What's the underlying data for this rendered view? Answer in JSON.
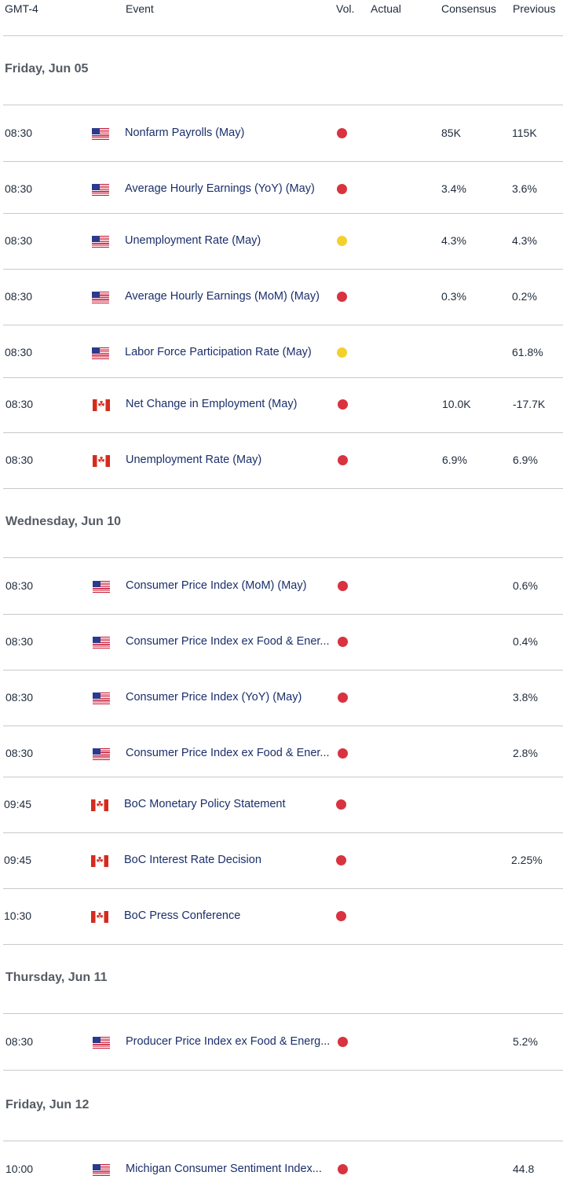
{
  "header": {
    "timezone": "GMT-4",
    "event": "Event",
    "vol": "Vol.",
    "actual": "Actual",
    "consensus": "Consensus",
    "previous": "Previous"
  },
  "colors": {
    "high": "#d8333f",
    "medium": "#f2d12e"
  },
  "sections": [
    {
      "date": "Friday, Jun 05",
      "rows": [
        {
          "time": "08:30",
          "flag": "us-flag-icon",
          "event": "Nonfarm Payrolls (May)",
          "vol": "high",
          "actual": "",
          "consensus": "85K",
          "previous": "115K"
        },
        {
          "time": "08:30",
          "flag": "us-flag-icon",
          "event": "Average Hourly Earnings (YoY) (May)",
          "vol": "high",
          "actual": "",
          "consensus": "3.4%",
          "previous": "3.6%"
        },
        {
          "time": "08:30",
          "flag": "us-flag-icon",
          "event": "Unemployment Rate (May)",
          "vol": "medium",
          "actual": "",
          "consensus": "4.3%",
          "previous": "4.3%"
        },
        {
          "time": "08:30",
          "flag": "us-flag-icon",
          "event": "Average Hourly Earnings (MoM) (May)",
          "vol": "high",
          "actual": "",
          "consensus": "0.3%",
          "previous": "0.2%"
        },
        {
          "time": "08:30",
          "flag": "us-flag-icon",
          "event": "Labor Force Participation Rate (May)",
          "vol": "medium",
          "actual": "",
          "consensus": "",
          "previous": "61.8%"
        },
        {
          "time": "08:30",
          "flag": "ca-flag-icon",
          "event": "Net Change in Employment (May)",
          "vol": "high",
          "actual": "",
          "consensus": "10.0K",
          "previous": "-17.7K"
        },
        {
          "time": "08:30",
          "flag": "ca-flag-icon",
          "event": "Unemployment Rate (May)",
          "vol": "high",
          "actual": "",
          "consensus": "6.9%",
          "previous": "6.9%"
        }
      ]
    },
    {
      "date": "Wednesday, Jun 10",
      "rows": [
        {
          "time": "08:30",
          "flag": "us-flag-icon",
          "event": "Consumer Price Index (MoM) (May)",
          "vol": "high",
          "actual": "",
          "consensus": "",
          "previous": "0.6%"
        },
        {
          "time": "08:30",
          "flag": "us-flag-icon",
          "event": "Consumer Price Index ex Food & Ener...",
          "vol": "high",
          "actual": "",
          "consensus": "",
          "previous": "0.4%"
        },
        {
          "time": "08:30",
          "flag": "us-flag-icon",
          "event": "Consumer Price Index (YoY) (May)",
          "vol": "high",
          "actual": "",
          "consensus": "",
          "previous": "3.8%"
        },
        {
          "time": "08:30",
          "flag": "us-flag-icon",
          "event": "Consumer Price Index ex Food & Ener...",
          "vol": "high",
          "actual": "",
          "consensus": "",
          "previous": "2.8%"
        },
        {
          "time": "09:45",
          "flag": "ca-flag-icon",
          "event": "BoC Monetary Policy Statement",
          "vol": "high",
          "actual": "",
          "consensus": "",
          "previous": ""
        },
        {
          "time": "09:45",
          "flag": "ca-flag-icon",
          "event": "BoC Interest Rate Decision",
          "vol": "high",
          "actual": "",
          "consensus": "",
          "previous": "2.25%"
        },
        {
          "time": "10:30",
          "flag": "ca-flag-icon",
          "event": "BoC Press Conference",
          "vol": "high",
          "actual": "",
          "consensus": "",
          "previous": ""
        }
      ]
    },
    {
      "date": "Thursday, Jun 11",
      "rows": [
        {
          "time": "08:30",
          "flag": "us-flag-icon",
          "event": "Producer Price Index ex Food & Energ...",
          "vol": "high",
          "actual": "",
          "consensus": "",
          "previous": "5.2%"
        }
      ]
    },
    {
      "date": "Friday, Jun 12",
      "rows": [
        {
          "time": "10:00",
          "flag": "us-flag-icon",
          "event": "Michigan Consumer Sentiment Index...",
          "vol": "high",
          "actual": "",
          "consensus": "",
          "previous": "44.8"
        }
      ]
    }
  ]
}
